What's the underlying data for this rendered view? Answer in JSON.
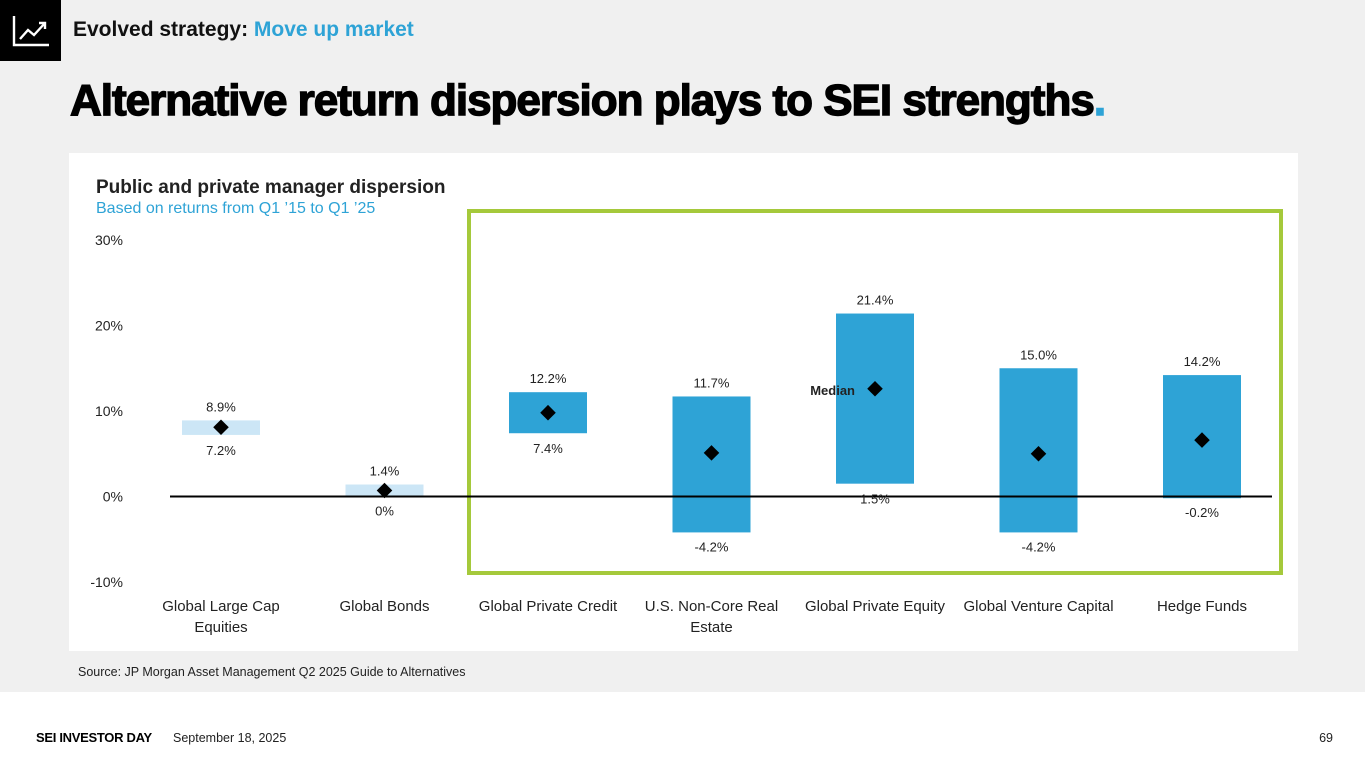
{
  "header": {
    "icon": "trend-line-icon",
    "kicker_prefix": "Evolved strategy:",
    "kicker_accent": "Move up market",
    "headline": "Alternative return dispersion plays to SEI strengths",
    "headline_dot": "."
  },
  "chart_data": {
    "type": "range-bar",
    "title": "Public and private manager dispersion",
    "subtitle": "Based on returns from Q1 ’15 to Q1 ’25",
    "y_ticks": [
      "30%",
      "20%",
      "10%",
      "0%",
      "-10%"
    ],
    "ylim": [
      -10,
      30
    ],
    "categories": [
      {
        "label": "Global Large Cap Equities",
        "label_lines": [
          "Global Large Cap",
          "Equities"
        ],
        "high": 8.9,
        "low": 7.2,
        "high_label": "8.9%",
        "low_label": "7.2%",
        "median": 8.1,
        "style": "light"
      },
      {
        "label": "Global Bonds",
        "label_lines": [
          "Global Bonds"
        ],
        "high": 1.4,
        "low": 0,
        "high_label": "1.4%",
        "low_label": "0%",
        "median": 0.7,
        "style": "light"
      },
      {
        "label": "Global Private Credit",
        "label_lines": [
          "Global Private Credit"
        ],
        "high": 12.2,
        "low": 7.4,
        "high_label": "12.2%",
        "low_label": "7.4%",
        "median": 9.8,
        "style": "dark"
      },
      {
        "label": "U.S. Non-Core Real Estate",
        "label_lines": [
          "U.S. Non-Core Real",
          "Estate"
        ],
        "high": 11.7,
        "low": -4.2,
        "high_label": "11.7%",
        "low_label": "-4.2%",
        "median": 5.1,
        "style": "dark"
      },
      {
        "label": "Global Private Equity",
        "label_lines": [
          "Global Private Equity"
        ],
        "high": 21.4,
        "low": 1.5,
        "high_label": "21.4%",
        "low_label": "1.5%",
        "median": 12.6,
        "style": "dark",
        "median_label": "Median"
      },
      {
        "label": "Global Venture Capital",
        "label_lines": [
          "Global Venture Capital"
        ],
        "high": 15.0,
        "low": -4.2,
        "high_label": "15.0%",
        "low_label": "-4.2%",
        "median": 5.0,
        "style": "dark"
      },
      {
        "label": "Hedge Funds",
        "label_lines": [
          "Hedge Funds"
        ],
        "high": 14.2,
        "low": -0.2,
        "high_label": "14.2%",
        "low_label": "-0.2%",
        "median": 6.6,
        "style": "dark"
      }
    ],
    "highlight_range": [
      "Global Private Credit",
      "Hedge Funds"
    ],
    "colors": {
      "dark": "#2ea3d6",
      "light": "#cce6f6",
      "highlight": "#a5c93b",
      "median": "#000000"
    }
  },
  "source": "Source: JP Morgan Asset Management Q2 2025 Guide to Alternatives",
  "footer": {
    "brand": "SEI INVESTOR DAY",
    "date": "September 18, 2025",
    "page": "69"
  }
}
